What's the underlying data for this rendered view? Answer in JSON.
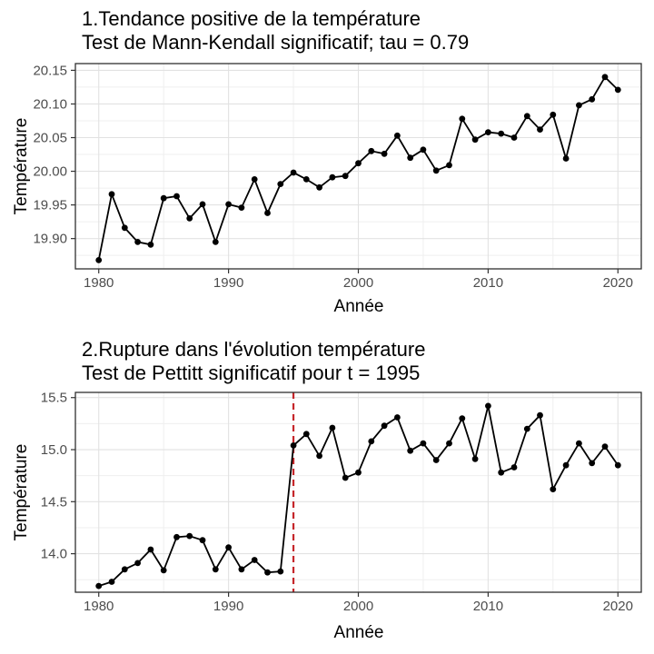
{
  "page": {
    "background": "#ffffff"
  },
  "chart_data": [
    {
      "type": "line",
      "title": "1.Tendance positive de la température",
      "subtitle": "Test de Mann-Kendall significatif; tau = 0.79",
      "xlabel": "Année",
      "ylabel": "Température",
      "x": [
        1980,
        1981,
        1982,
        1983,
        1984,
        1985,
        1986,
        1987,
        1988,
        1989,
        1990,
        1991,
        1992,
        1993,
        1994,
        1995,
        1996,
        1997,
        1998,
        1999,
        2000,
        2001,
        2002,
        2003,
        2004,
        2005,
        2006,
        2007,
        2008,
        2009,
        2010,
        2011,
        2012,
        2013,
        2014,
        2015,
        2016,
        2017,
        2018,
        2019,
        2020
      ],
      "y": [
        19.868,
        19.966,
        19.916,
        19.895,
        19.891,
        19.96,
        19.963,
        19.93,
        19.951,
        19.895,
        19.951,
        19.946,
        19.988,
        19.938,
        19.981,
        19.998,
        19.988,
        19.976,
        19.991,
        19.993,
        20.012,
        20.03,
        20.026,
        20.053,
        20.02,
        20.032,
        20.001,
        20.009,
        20.078,
        20.047,
        20.058,
        20.056,
        20.05,
        20.082,
        20.062,
        20.084,
        20.019,
        20.098,
        20.107,
        20.14,
        20.121
      ],
      "xlim": [
        1978.2,
        2021.8
      ],
      "ylim": [
        19.855,
        20.16
      ],
      "xticks": [
        1980,
        1990,
        2000,
        2010,
        2020
      ],
      "xtick_labels": [
        "1980",
        "1990",
        "2000",
        "2010",
        "2020"
      ],
      "yticks": [
        19.9,
        19.95,
        20.0,
        20.05,
        20.1,
        20.15
      ],
      "ytick_labels": [
        "19.90",
        "19.95",
        "20.00",
        "20.05",
        "20.10",
        "20.15"
      ],
      "xticks_minor": [
        1985,
        1995,
        2005,
        2015
      ],
      "yticks_minor": [
        19.875,
        19.925,
        19.975,
        20.025,
        20.075,
        20.125
      ],
      "grid": true,
      "legend": "none",
      "line_color": "#000000",
      "point_color": "#000000"
    },
    {
      "type": "line",
      "title": "2.Rupture dans l'évolution température",
      "subtitle": "Test de Pettitt significatif pour t = 1995",
      "xlabel": "Année",
      "ylabel": "Température",
      "x": [
        1980,
        1981,
        1982,
        1983,
        1984,
        1985,
        1986,
        1987,
        1988,
        1989,
        1990,
        1991,
        1992,
        1993,
        1994,
        1995,
        1996,
        1997,
        1998,
        1999,
        2000,
        2001,
        2002,
        2003,
        2004,
        2005,
        2006,
        2007,
        2008,
        2009,
        2010,
        2011,
        2012,
        2013,
        2014,
        2015,
        2016,
        2017,
        2018,
        2019,
        2020
      ],
      "y": [
        13.69,
        13.73,
        13.85,
        13.91,
        14.04,
        13.84,
        14.16,
        14.17,
        14.13,
        13.85,
        14.06,
        13.85,
        13.94,
        13.82,
        13.83,
        15.04,
        15.15,
        14.94,
        15.21,
        14.73,
        14.78,
        15.08,
        15.23,
        15.31,
        14.99,
        15.06,
        14.9,
        15.06,
        15.3,
        14.91,
        15.42,
        14.78,
        14.83,
        15.2,
        15.33,
        14.62,
        14.85,
        15.06,
        14.87,
        15.03,
        14.85
      ],
      "xlim": [
        1978.2,
        2021.8
      ],
      "ylim": [
        13.63,
        15.55
      ],
      "xticks": [
        1980,
        1990,
        2000,
        2010,
        2020
      ],
      "xtick_labels": [
        "1980",
        "1990",
        "2000",
        "2010",
        "2020"
      ],
      "yticks": [
        14.0,
        14.5,
        15.0,
        15.5
      ],
      "ytick_labels": [
        "14.0",
        "14.5",
        "15.0",
        "15.5"
      ],
      "xticks_minor": [
        1985,
        1995,
        2005,
        2015
      ],
      "yticks_minor": [
        13.75,
        14.25,
        14.75,
        15.25
      ],
      "grid": true,
      "legend": "none",
      "line_color": "#000000",
      "point_color": "#000000",
      "vline": {
        "x": 1995,
        "color": "#C5262A",
        "style": "dashed"
      }
    }
  ],
  "style_colors": {
    "grid_major": "#e2e2e2",
    "grid_minor": "#efefef",
    "panel_border": "#2f2f2f",
    "tick_mark": "#333333",
    "tick_label": "#4d4d4d"
  }
}
